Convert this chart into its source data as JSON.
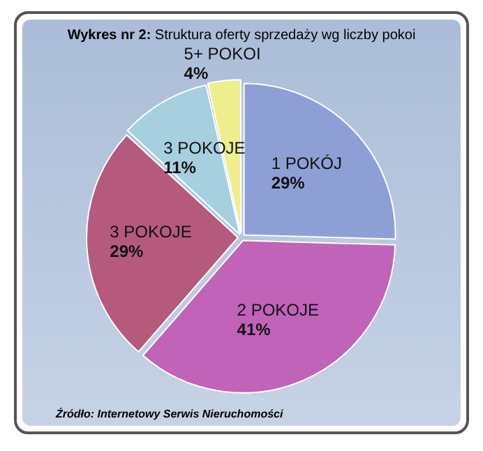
{
  "chart_data": {
    "type": "pie",
    "title": "Wykres nr 2: Struktura oferty sprzedaży wg liczby pokoi",
    "categories": [
      "1 POKÓJ",
      "2 POKOJE",
      "3 POKOJE",
      "3 POKOJE",
      "5+ POKOI"
    ],
    "values": [
      29,
      41,
      29,
      11,
      4
    ],
    "value_labels": [
      "29%",
      "41%",
      "29%",
      "11%",
      "4%"
    ],
    "colors": [
      "#8e9fd6",
      "#c063b9",
      "#b55a7c",
      "#a6cfdf",
      "#eeee8c"
    ],
    "legend": false,
    "annotations": [
      "Źródło: Internetowy Serwis Nieruchomości"
    ]
  }
}
